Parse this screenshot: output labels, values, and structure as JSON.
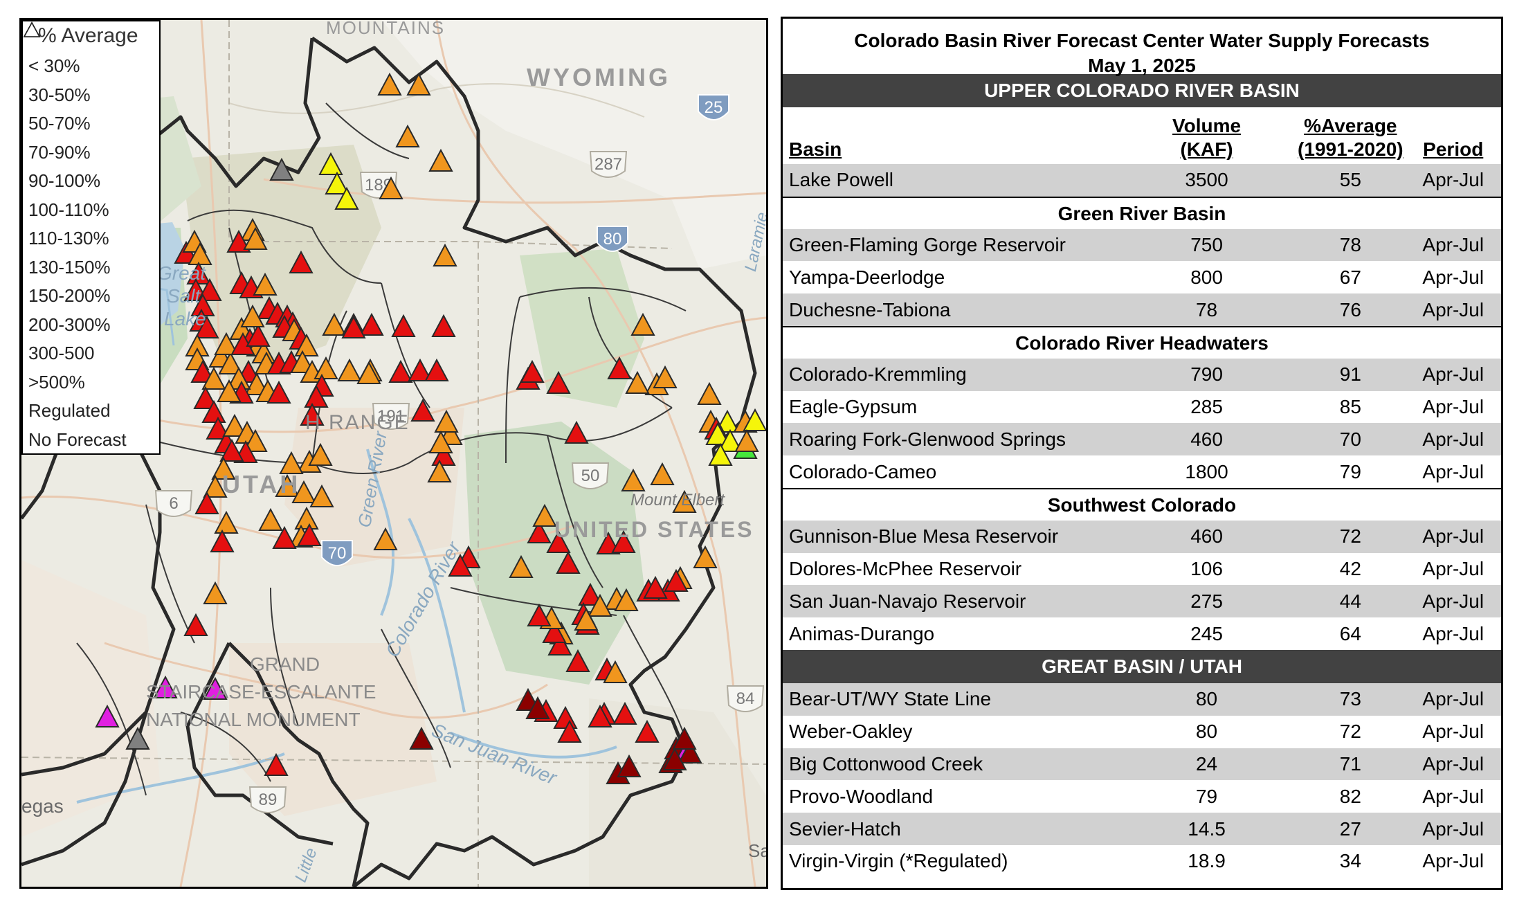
{
  "legend": {
    "title": "% Average",
    "items": [
      {
        "label": "< 30%",
        "color": "#e020e0"
      },
      {
        "label": "30-50%",
        "color": "#8b0000"
      },
      {
        "label": "50-70%",
        "color": "#e41010"
      },
      {
        "label": "70-90%",
        "color": "#f0961e"
      },
      {
        "label": "90-100%",
        "color": "#f5f50a"
      },
      {
        "label": "100-110%",
        "color": "#46e63c"
      },
      {
        "label": "110-130%",
        "color": "#3cdcdc"
      },
      {
        "label": "130-150%",
        "color": "#3c8cdc"
      },
      {
        "label": "150-200%",
        "color": "#1e1ee6"
      },
      {
        "label": "200-300%",
        "color": "#8c28e6"
      },
      {
        "label": "300-500",
        "color": "#6e28c8"
      },
      {
        "label": ">500%",
        "color": "#461e8c"
      },
      {
        "label": "Regulated",
        "color": "#808080"
      },
      {
        "label": "No Forecast",
        "color": "#ffffff"
      }
    ]
  },
  "map_labels": {
    "mountains": "MOUNTAINS",
    "wyoming": "WYOMING",
    "great_salt_lake_1": "Great",
    "great_salt_lake_2": "Salt",
    "great_salt_lake_3": "Lake",
    "range": "H RANGE",
    "utah": "UTAH",
    "green_river": "Green River",
    "colorado_river": "Colorado River",
    "san_juan_river": "San Juan River",
    "united_states": "UNITED STATES",
    "mount_elbert": "Mount Elbert",
    "laramie": "Laramie",
    "grand_1": "GRAND",
    "grand_2": "STAIRCASE-ESCALANTE",
    "grand_3": "NATIONAL MONUMENT",
    "vegas": "egas",
    "little": "Little",
    "sa": "Sa",
    "shields": {
      "s25": "25",
      "s287": "287",
      "s189": "189",
      "s80": "80",
      "s6": "6",
      "s70": "70",
      "s50": "50",
      "s84": "84",
      "s89": "89",
      "s191": "191"
    }
  },
  "panel": {
    "title_line1": "Colorado Basin River Forecast Center Water Supply Forecasts",
    "title_line2": "May 1, 2025",
    "upper_band": "UPPER COLORADO RIVER BASIN",
    "headers": {
      "basin": "Basin",
      "vol1": "Volume",
      "vol2": "(KAF)",
      "pct1": "%Average",
      "pct2": "(1991-2020)",
      "period": "Period"
    },
    "lake_powell": {
      "name": "Lake Powell",
      "volume": "3500",
      "pct": "55",
      "period": "Apr-Jul"
    },
    "sections": [
      {
        "title": "Green River Basin",
        "rows": [
          {
            "name": "Green-Flaming Gorge Reservoir",
            "volume": "750",
            "pct": "78",
            "period": "Apr-Jul"
          },
          {
            "name": "Yampa-Deerlodge",
            "volume": "800",
            "pct": "67",
            "period": "Apr-Jul"
          },
          {
            "name": "Duchesne-Tabiona",
            "volume": "78",
            "pct": "76",
            "period": "Apr-Jul"
          }
        ]
      },
      {
        "title": "Colorado River Headwaters",
        "rows": [
          {
            "name": "Colorado-Kremmling",
            "volume": "790",
            "pct": "91",
            "period": "Apr-Jul"
          },
          {
            "name": "Eagle-Gypsum",
            "volume": "285",
            "pct": "85",
            "period": "Apr-Jul"
          },
          {
            "name": "Roaring Fork-Glenwood Springs",
            "volume": "460",
            "pct": "70",
            "period": "Apr-Jul"
          },
          {
            "name": "Colorado-Cameo",
            "volume": "1800",
            "pct": "79",
            "period": "Apr-Jul"
          }
        ]
      },
      {
        "title": "Southwest Colorado",
        "rows": [
          {
            "name": "Gunnison-Blue Mesa Reservoir",
            "volume": "460",
            "pct": "72",
            "period": "Apr-Jul"
          },
          {
            "name": "Dolores-McPhee Reservoir",
            "volume": "106",
            "pct": "42",
            "period": "Apr-Jul"
          },
          {
            "name": "San Juan-Navajo Reservoir",
            "volume": "275",
            "pct": "44",
            "period": "Apr-Jul"
          },
          {
            "name": "Animas-Durango",
            "volume": "245",
            "pct": "64",
            "period": "Apr-Jul"
          }
        ]
      }
    ],
    "great_basin_band": "GREAT BASIN / UTAH",
    "great_basin_rows": [
      {
        "name": "Bear-UT/WY State Line",
        "volume": "80",
        "pct": "73",
        "period": "Apr-Jul"
      },
      {
        "name": "Weber-Oakley",
        "volume": "80",
        "pct": "72",
        "period": "Apr-Jul"
      },
      {
        "name": "Big Cottonwood Creek",
        "volume": "24",
        "pct": "71",
        "period": "Apr-Jul"
      },
      {
        "name": "Provo-Woodland",
        "volume": "79",
        "pct": "82",
        "period": "Apr-Jul"
      },
      {
        "name": "Sevier-Hatch",
        "volume": "14.5",
        "pct": "27",
        "period": "Apr-Jul"
      },
      {
        "name": "Virgin-Virgin (*Regulated)",
        "volume": "18.9",
        "pct": "34",
        "period": "Apr-Jul"
      }
    ]
  }
}
